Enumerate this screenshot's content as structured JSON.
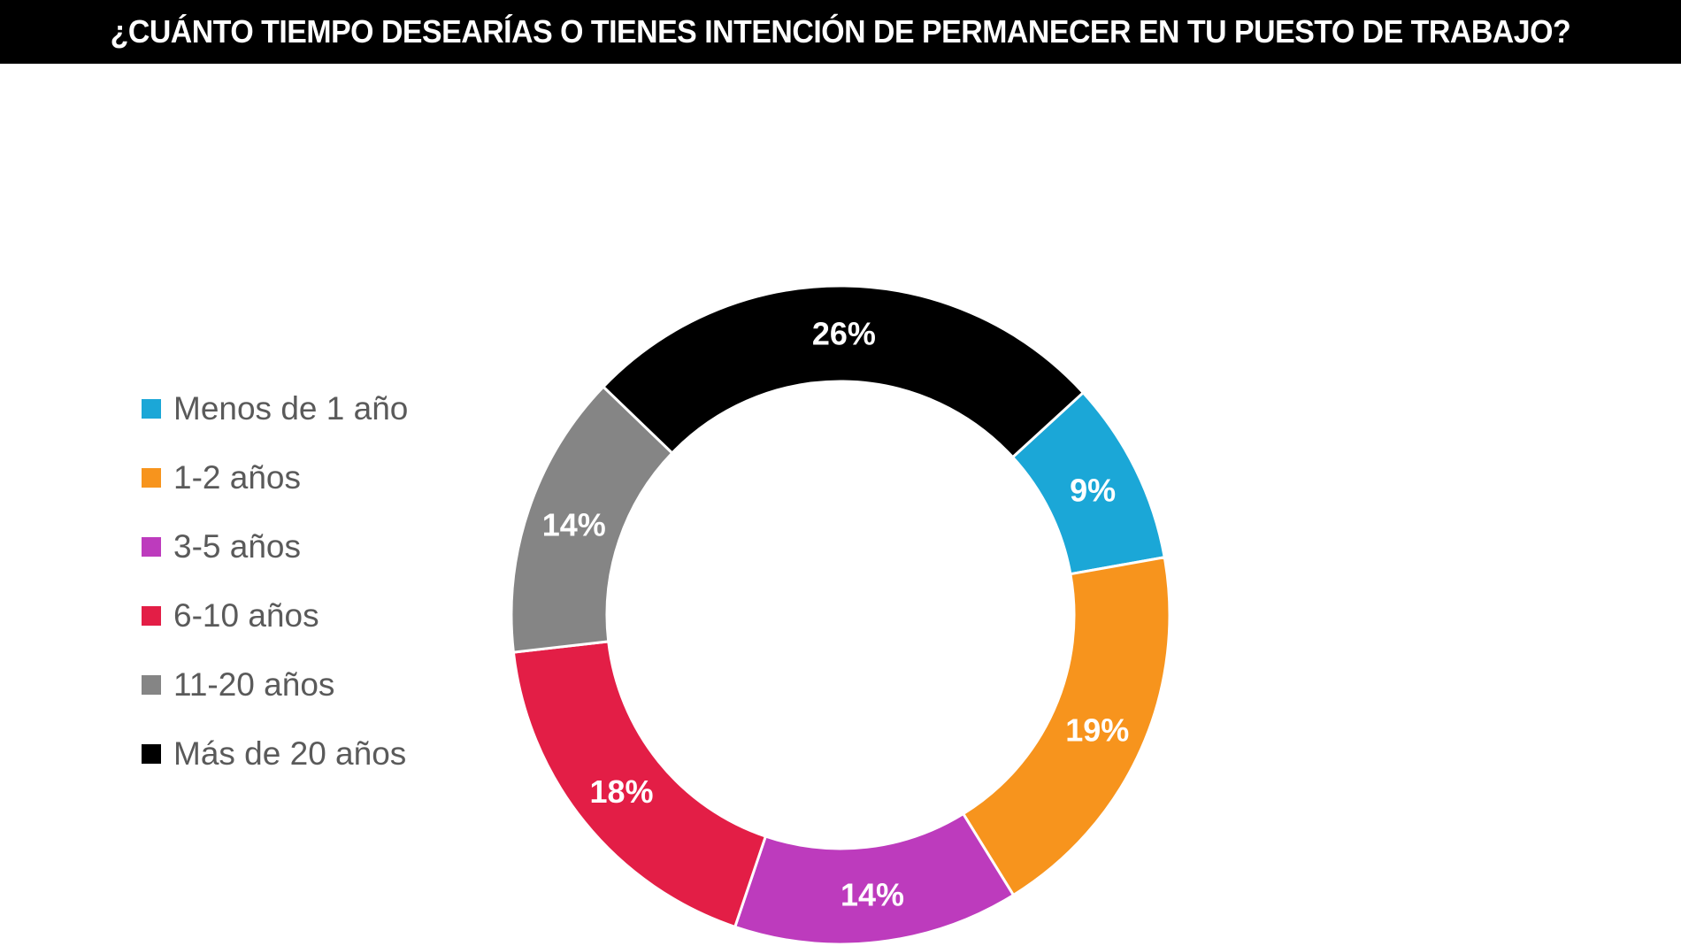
{
  "header": {
    "title": "¿CUÁNTO TIEMPO DESEARÍAS O TIENES INTENCIÓN DE PERMANECER EN TU PUESTO DE TRABAJO?"
  },
  "chart_data": {
    "type": "pie",
    "variant": "donut",
    "title": "¿CUÁNTO TIEMPO DESEARÍAS O TIENES INTENCIÓN DE PERMANECER EN TU PUESTO DE TRABAJO?",
    "legend_position": "left",
    "categories": [
      "Menos de 1 año",
      "1-2 años",
      "3-5 años",
      "6-10 años",
      "11-20 años",
      "Más de 20 años"
    ],
    "values": [
      9,
      19,
      14,
      18,
      14,
      26
    ],
    "labels": [
      "9%",
      "19%",
      "14%",
      "18%",
      "14%",
      "26%"
    ],
    "colors": [
      "#1ba7d7",
      "#f7941d",
      "#bd3bbd",
      "#e31e46",
      "#858585",
      "#000000"
    ]
  }
}
